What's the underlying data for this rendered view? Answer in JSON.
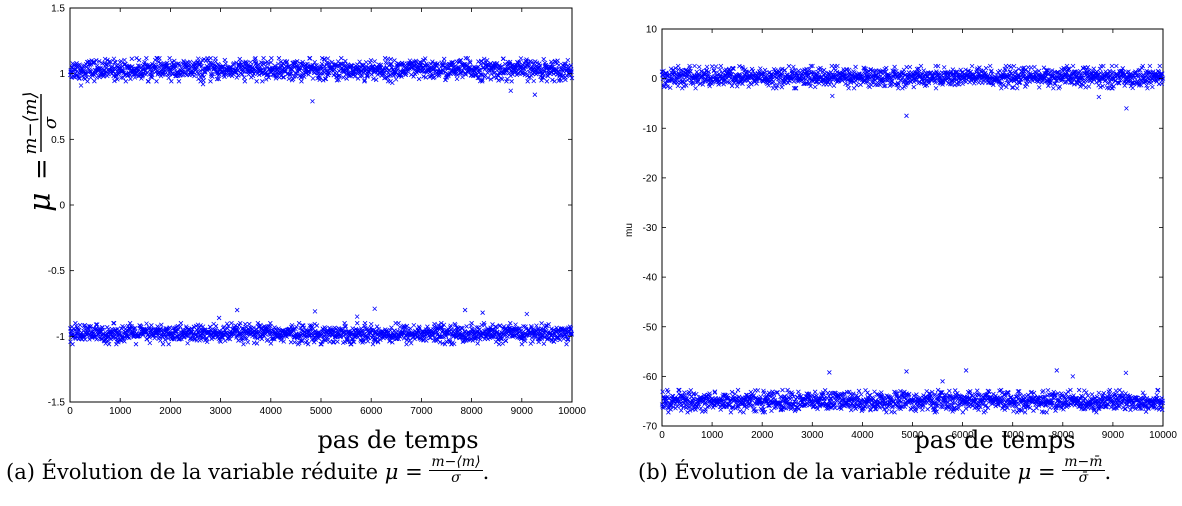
{
  "chart_data": [
    {
      "type": "scatter",
      "panel": "a",
      "marker": "x",
      "color": "#0000ff",
      "xlabel": "pas de temps",
      "ylabel": "μ = (m−⟨m⟩)/σ",
      "xlim": [
        0,
        10000
      ],
      "ylim": [
        -1.5,
        1.5
      ],
      "xticks": [
        "0",
        "1000",
        "2000",
        "3000",
        "4000",
        "5000",
        "6000",
        "7000",
        "8000",
        "9000",
        "10000"
      ],
      "yticks": [
        "1.5",
        "1",
        "0.5",
        "0",
        "-0.5",
        "-1",
        "-1.5"
      ],
      "grid": false,
      "series": [
        {
          "band_center": 1.03,
          "band_spread": 0.055,
          "outliers": [
            [
              220,
              0.91
            ],
            [
              4830,
              0.79
            ],
            [
              8780,
              0.87
            ],
            [
              9260,
              0.84
            ],
            [
              2650,
              0.92
            ],
            [
              6420,
              0.93
            ]
          ]
        },
        {
          "band_center": -0.98,
          "band_spread": 0.05,
          "outliers": [
            [
              3330,
              -0.8
            ],
            [
              4880,
              -0.81
            ],
            [
              6070,
              -0.79
            ],
            [
              7870,
              -0.8
            ],
            [
              8220,
              -0.82
            ],
            [
              9100,
              -0.83
            ],
            [
              2970,
              -0.86
            ],
            [
              5720,
              -0.85
            ]
          ]
        }
      ],
      "caption": "(a) Évolution de la variable réduite μ = (m−⟨m⟩)/σ."
    },
    {
      "type": "scatter",
      "panel": "b",
      "marker": "x",
      "color": "#0000ff",
      "xlabel": "pas de temps",
      "ylabel": "mu",
      "xlim": [
        0,
        10000
      ],
      "ylim": [
        -70,
        10
      ],
      "xticks": [
        "0",
        "1000",
        "2000",
        "3000",
        "4000",
        "5000",
        "6000",
        "7000",
        "8000",
        "9000",
        "10000"
      ],
      "yticks": [
        "10",
        "0",
        "-10",
        "-20",
        "-30",
        "-40",
        "-50",
        "-60",
        "-70"
      ],
      "grid": false,
      "series": [
        {
          "band_center": 0.3,
          "band_spread": 1.4,
          "outliers": [
            [
              4880,
              -7.5
            ],
            [
              9270,
              -6.0
            ],
            [
              8720,
              -3.7
            ],
            [
              3400,
              -3.5
            ]
          ]
        },
        {
          "band_center": -65.0,
          "band_spread": 1.4,
          "outliers": [
            [
              3340,
              -59.2
            ],
            [
              4880,
              -59.0
            ],
            [
              6070,
              -58.8
            ],
            [
              7880,
              -58.8
            ],
            [
              9260,
              -59.3
            ],
            [
              8200,
              -60.0
            ],
            [
              5600,
              -61.0
            ]
          ]
        }
      ],
      "caption": "(b) Évolution de la variable réduite μ = (m−m̄)/σ̄."
    }
  ],
  "labels": {
    "panel_a": {
      "xlabel": "pas de temps",
      "ylabel_mu": "μ",
      "ylabel_eq": "=",
      "ylabel_num": "m−⟨m⟩",
      "ylabel_den": "σ",
      "caption_prefix": "(a) Évolution de la variable réduite ",
      "caption_mu": "μ",
      "caption_eq": " = ",
      "caption_num": "m−⟨m⟩",
      "caption_den": "σ",
      "caption_end": "."
    },
    "panel_b": {
      "xlabel": "pas de temps",
      "ylabel": "mu",
      "caption_prefix": "(b) Évolution de la variable réduite ",
      "caption_mu": "μ",
      "caption_eq": " = ",
      "caption_num": "m−m̄",
      "caption_den": "σ̄",
      "caption_end": "."
    }
  }
}
